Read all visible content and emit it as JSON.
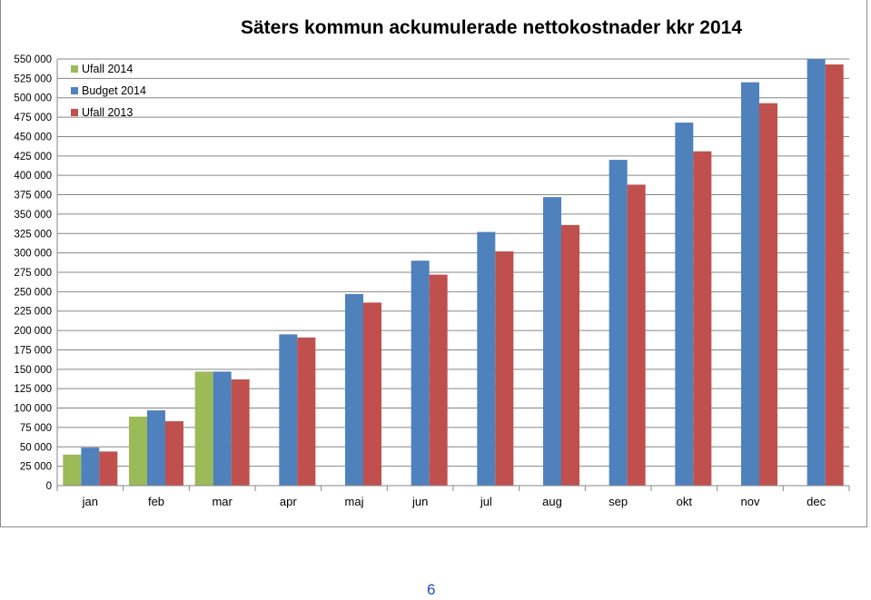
{
  "chart_data": {
    "type": "bar",
    "title": "Säters kommun ackumulerade nettokostnader kkr 2014",
    "categories": [
      "jan",
      "feb",
      "mar",
      "apr",
      "maj",
      "jun",
      "jul",
      "aug",
      "sep",
      "okt",
      "nov",
      "dec"
    ],
    "series": [
      {
        "name": "Ufall 2014",
        "color": "#9bbb59",
        "values": [
          40000,
          89000,
          147000,
          null,
          null,
          null,
          null,
          null,
          null,
          null,
          null,
          null
        ]
      },
      {
        "name": "Budget 2014",
        "color": "#4f81bd",
        "values": [
          49000,
          97000,
          147000,
          195000,
          247000,
          290000,
          327000,
          372000,
          420000,
          468000,
          520000,
          550000
        ]
      },
      {
        "name": "Ufall 2013",
        "color": "#c0504d",
        "values": [
          44000,
          83000,
          137000,
          191000,
          236000,
          272000,
          302000,
          336000,
          388000,
          431000,
          493000,
          543000
        ]
      }
    ],
    "ylim": [
      0,
      550000
    ],
    "ytick_step": 25000,
    "yticks": [
      "0",
      "25 000",
      "50 000",
      "75 000",
      "100 000",
      "125 000",
      "150 000",
      "175 000",
      "200 000",
      "225 000",
      "250 000",
      "275 000",
      "300 000",
      "325 000",
      "350 000",
      "375 000",
      "400 000",
      "425 000",
      "450 000",
      "475 000",
      "500 000",
      "525 000",
      "550 000"
    ],
    "grid": true,
    "legend_position": "top-left"
  },
  "page_number": "6"
}
